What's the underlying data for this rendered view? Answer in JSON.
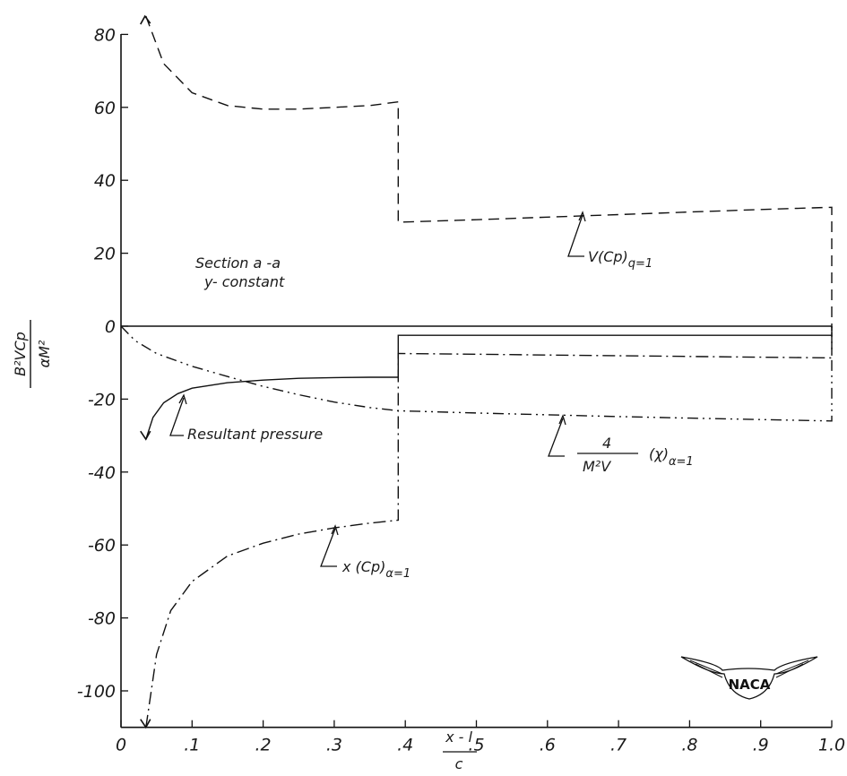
{
  "chart_data": {
    "type": "line",
    "title": "",
    "subtitle": "",
    "xlabel": "(x − l)/c",
    "ylabel": "B²VCp / αM²",
    "xlim": [
      0,
      1.0
    ],
    "ylim": [
      -110,
      85
    ],
    "x_ticks": [
      "0",
      ".1",
      ".2",
      ".3",
      ".4",
      ".5",
      ".6",
      ".7",
      ".8",
      ".9",
      "1.0"
    ],
    "y_ticks": [
      "80",
      "60",
      "40",
      "20",
      "0",
      "-20",
      "-40",
      "-60",
      "-80",
      "-100"
    ],
    "y_tick_values": [
      80,
      60,
      40,
      20,
      0,
      -20,
      -40,
      -60,
      -80,
      -100
    ],
    "grid": false,
    "legend": "none",
    "annotation": {
      "line1": "Section a -a",
      "line2": "y- constant"
    },
    "series": [
      {
        "name": "V(Cp)q=1",
        "style": "dashed",
        "x": [
          0.035,
          0.06,
          0.1,
          0.15,
          0.2,
          0.25,
          0.3,
          0.35,
          0.39,
          0.39,
          0.5,
          0.6,
          0.7,
          0.8,
          0.9,
          1.0,
          1.0
        ],
        "y": [
          85,
          72,
          64,
          60.5,
          59.5,
          59.5,
          60,
          60.5,
          61.5,
          28.5,
          29.2,
          29.9,
          30.6,
          31.3,
          32.0,
          32.6,
          0
        ]
      },
      {
        "name": "Resultant pressure",
        "style": "solid-bold",
        "x": [
          0.035,
          0.045,
          0.06,
          0.08,
          0.1,
          0.15,
          0.2,
          0.25,
          0.3,
          0.35,
          0.39,
          0.39,
          1.0,
          1.0
        ],
        "y": [
          -31,
          -25,
          -21,
          -18.5,
          -17,
          -15.5,
          -14.8,
          -14.3,
          -14.1,
          -14,
          -14,
          -2.5,
          -2.5,
          0
        ]
      },
      {
        "name": "4/(M²V) (χ)α=1",
        "style": "dash-dot-dot",
        "x": [
          0,
          0.02,
          0.05,
          0.1,
          0.15,
          0.2,
          0.25,
          0.3,
          0.35,
          0.39,
          0.5,
          0.6,
          0.7,
          0.8,
          0.9,
          1.0,
          1.0
        ],
        "y": [
          0,
          -4,
          -7.5,
          -11,
          -13.8,
          -16.5,
          -18.8,
          -20.8,
          -22.3,
          -23.2,
          -23.8,
          -24.3,
          -24.8,
          -25.2,
          -25.6,
          -26,
          0
        ]
      },
      {
        "name": "x(Cp)α=1",
        "style": "dash-dot",
        "x": [
          0.035,
          0.05,
          0.07,
          0.1,
          0.15,
          0.2,
          0.25,
          0.3,
          0.35,
          0.39,
          0.39,
          0.5,
          0.6,
          0.7,
          0.8,
          0.9,
          1.0,
          1.0
        ],
        "y": [
          -110,
          -90,
          -78,
          -70,
          -63,
          -59.5,
          -57,
          -55.3,
          -54,
          -53.2,
          -7.5,
          -7.7,
          -7.9,
          -8.1,
          -8.3,
          -8.5,
          -8.7,
          0
        ]
      }
    ],
    "labels": {
      "resultant": "Resultant pressure",
      "v_cp_main": "V(Cp)",
      "v_cp_sub": "q=1",
      "x_cp_main": "x (Cp)",
      "x_cp_sub": "α=1",
      "chi_num": "4",
      "chi_den": "M²V",
      "chi_main": "(χ)",
      "chi_sub": "α=1"
    },
    "axis_label": {
      "y_num": "B²VCp",
      "y_den": "αM²",
      "x_num": "x - l",
      "x_den": "c"
    },
    "logo_text": "NACA"
  }
}
